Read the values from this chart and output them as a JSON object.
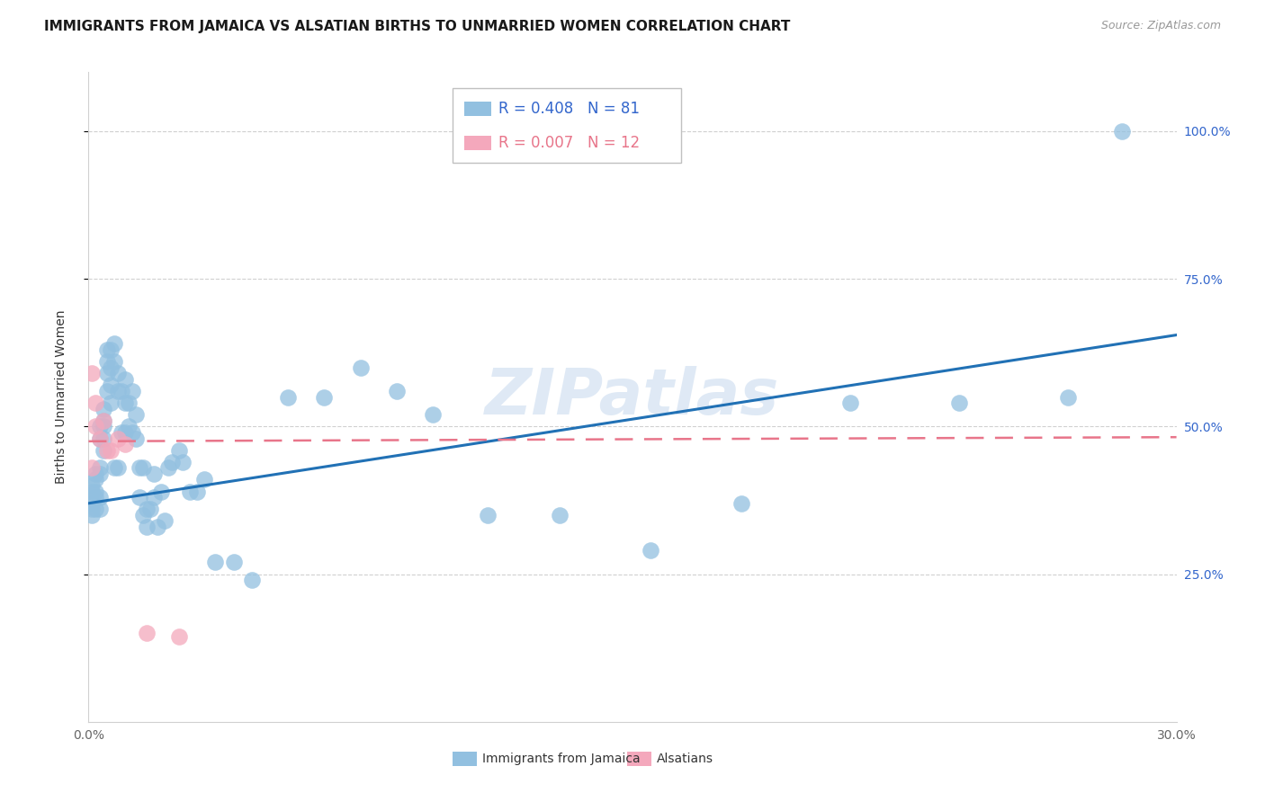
{
  "title": "IMMIGRANTS FROM JAMAICA VS ALSATIAN BIRTHS TO UNMARRIED WOMEN CORRELATION CHART",
  "source": "Source: ZipAtlas.com",
  "ylabel": "Births to Unmarried Women",
  "legend_blue_r": "R = 0.408",
  "legend_blue_n": "N = 81",
  "legend_pink_r": "R = 0.007",
  "legend_pink_n": "N = 12",
  "legend_label_blue": "Immigrants from Jamaica",
  "legend_label_pink": "Alsatians",
  "blue_color": "#92c0e0",
  "pink_color": "#f4a8bc",
  "blue_line_color": "#2171b5",
  "pink_line_color": "#e8758a",
  "xmin": 0.0,
  "xmax": 0.3,
  "ymin": 0.0,
  "ymax": 1.1,
  "blue_trend_x0": 0.0,
  "blue_trend_y0": 0.37,
  "blue_trend_x1": 0.3,
  "blue_trend_y1": 0.655,
  "pink_trend_x0": 0.0,
  "pink_trend_y0": 0.475,
  "pink_trend_x1": 0.3,
  "pink_trend_y1": 0.482,
  "blue_scatter_x": [
    0.001,
    0.001,
    0.001,
    0.001,
    0.001,
    0.002,
    0.002,
    0.002,
    0.002,
    0.002,
    0.003,
    0.003,
    0.003,
    0.003,
    0.003,
    0.003,
    0.004,
    0.004,
    0.004,
    0.004,
    0.004,
    0.005,
    0.005,
    0.005,
    0.005,
    0.006,
    0.006,
    0.006,
    0.006,
    0.007,
    0.007,
    0.007,
    0.008,
    0.008,
    0.008,
    0.009,
    0.009,
    0.01,
    0.01,
    0.01,
    0.011,
    0.011,
    0.012,
    0.012,
    0.013,
    0.013,
    0.014,
    0.014,
    0.015,
    0.015,
    0.016,
    0.016,
    0.017,
    0.018,
    0.018,
    0.019,
    0.02,
    0.021,
    0.022,
    0.023,
    0.025,
    0.026,
    0.028,
    0.03,
    0.032,
    0.035,
    0.04,
    0.045,
    0.055,
    0.065,
    0.075,
    0.085,
    0.095,
    0.11,
    0.13,
    0.155,
    0.18,
    0.21,
    0.24,
    0.27,
    0.285
  ],
  "blue_scatter_y": [
    0.39,
    0.4,
    0.37,
    0.36,
    0.35,
    0.39,
    0.38,
    0.42,
    0.41,
    0.36,
    0.5,
    0.48,
    0.43,
    0.42,
    0.36,
    0.38,
    0.53,
    0.51,
    0.5,
    0.48,
    0.46,
    0.63,
    0.61,
    0.59,
    0.56,
    0.63,
    0.6,
    0.57,
    0.54,
    0.64,
    0.61,
    0.43,
    0.59,
    0.56,
    0.43,
    0.56,
    0.49,
    0.58,
    0.54,
    0.49,
    0.54,
    0.5,
    0.56,
    0.49,
    0.52,
    0.48,
    0.43,
    0.38,
    0.43,
    0.35,
    0.36,
    0.33,
    0.36,
    0.42,
    0.38,
    0.33,
    0.39,
    0.34,
    0.43,
    0.44,
    0.46,
    0.44,
    0.39,
    0.39,
    0.41,
    0.27,
    0.27,
    0.24,
    0.55,
    0.55,
    0.6,
    0.56,
    0.52,
    0.35,
    0.35,
    0.29,
    0.37,
    0.54,
    0.54,
    0.55,
    1.0
  ],
  "pink_scatter_x": [
    0.001,
    0.001,
    0.002,
    0.002,
    0.003,
    0.004,
    0.005,
    0.006,
    0.008,
    0.01,
    0.016,
    0.025
  ],
  "pink_scatter_y": [
    0.59,
    0.43,
    0.54,
    0.5,
    0.48,
    0.51,
    0.46,
    0.46,
    0.48,
    0.47,
    0.15,
    0.145
  ],
  "title_fontsize": 11,
  "axis_label_fontsize": 10,
  "tick_fontsize": 10,
  "legend_fontsize": 11,
  "source_fontsize": 9
}
